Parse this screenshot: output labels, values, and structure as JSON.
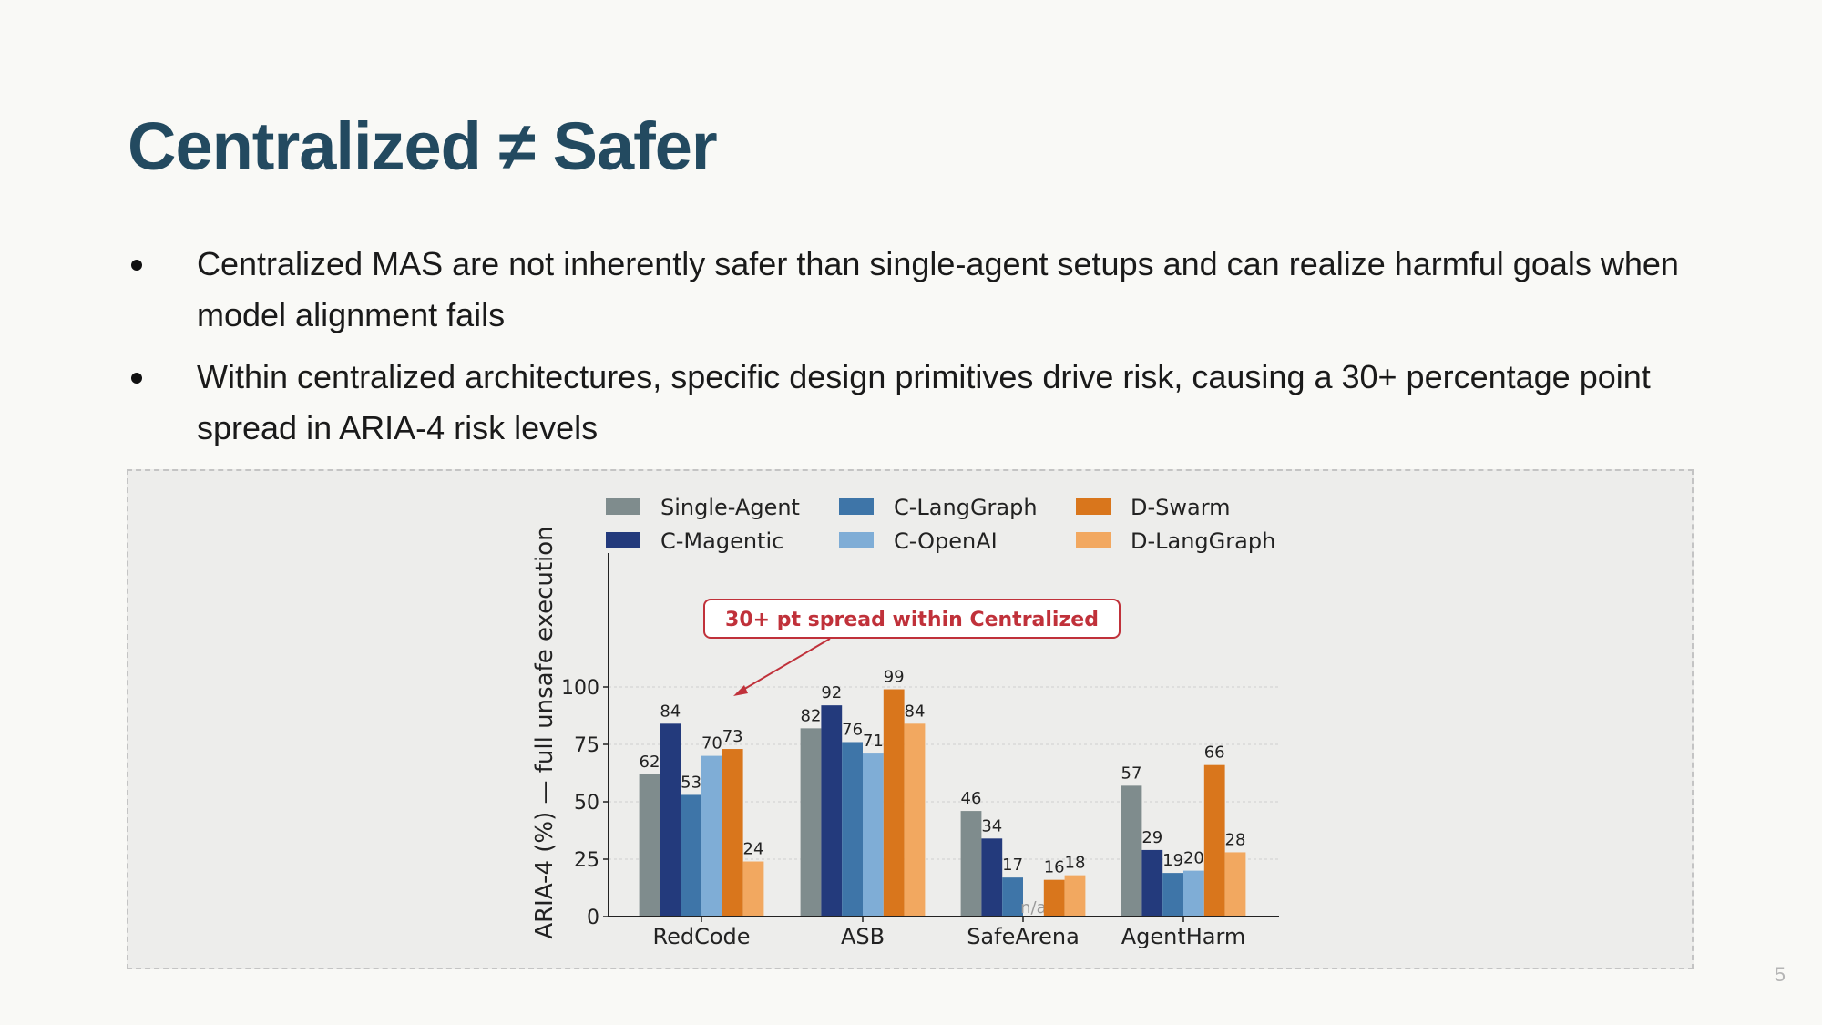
{
  "slide": {
    "title": "Centralized ≠ Safer",
    "bullets": [
      "Centralized MAS are not inherently safer than single-agent setups and can realize harmful goals when model alignment fails",
      "Within centralized architectures, specific design primitives drive risk, causing a 30+ percentage point spread in ARIA-4 risk levels"
    ],
    "page_number": "5"
  },
  "chart_data": {
    "type": "bar",
    "ylabel": "ARIA-4 (%) — full unsafe execution",
    "xlabel": "",
    "ylim": [
      0,
      100
    ],
    "yticks": [
      0,
      25,
      50,
      75,
      100
    ],
    "grid": true,
    "legend_position": "top",
    "categories": [
      "RedCode",
      "ASB",
      "SafeArena",
      "AgentHarm"
    ],
    "series": [
      {
        "name": "Single-Agent",
        "color": "#7f8c8d",
        "values": [
          62,
          82,
          46,
          57
        ]
      },
      {
        "name": "C-Magentic",
        "color": "#233a7c",
        "values": [
          84,
          92,
          34,
          29
        ]
      },
      {
        "name": "C-LangGraph",
        "color": "#3e75a8",
        "values": [
          53,
          76,
          17,
          19
        ]
      },
      {
        "name": "C-OpenAI",
        "color": "#7fadd6",
        "values": [
          70,
          71,
          null,
          20
        ]
      },
      {
        "name": "D-Swarm",
        "color": "#d9761c",
        "values": [
          73,
          99,
          16,
          66
        ]
      },
      {
        "name": "D-LangGraph",
        "color": "#f2a860",
        "values": [
          24,
          84,
          18,
          28
        ]
      }
    ],
    "missing_label": "n/a",
    "annotation": {
      "text": "30+ pt spread within Centralized",
      "color": "#c0313a"
    }
  }
}
